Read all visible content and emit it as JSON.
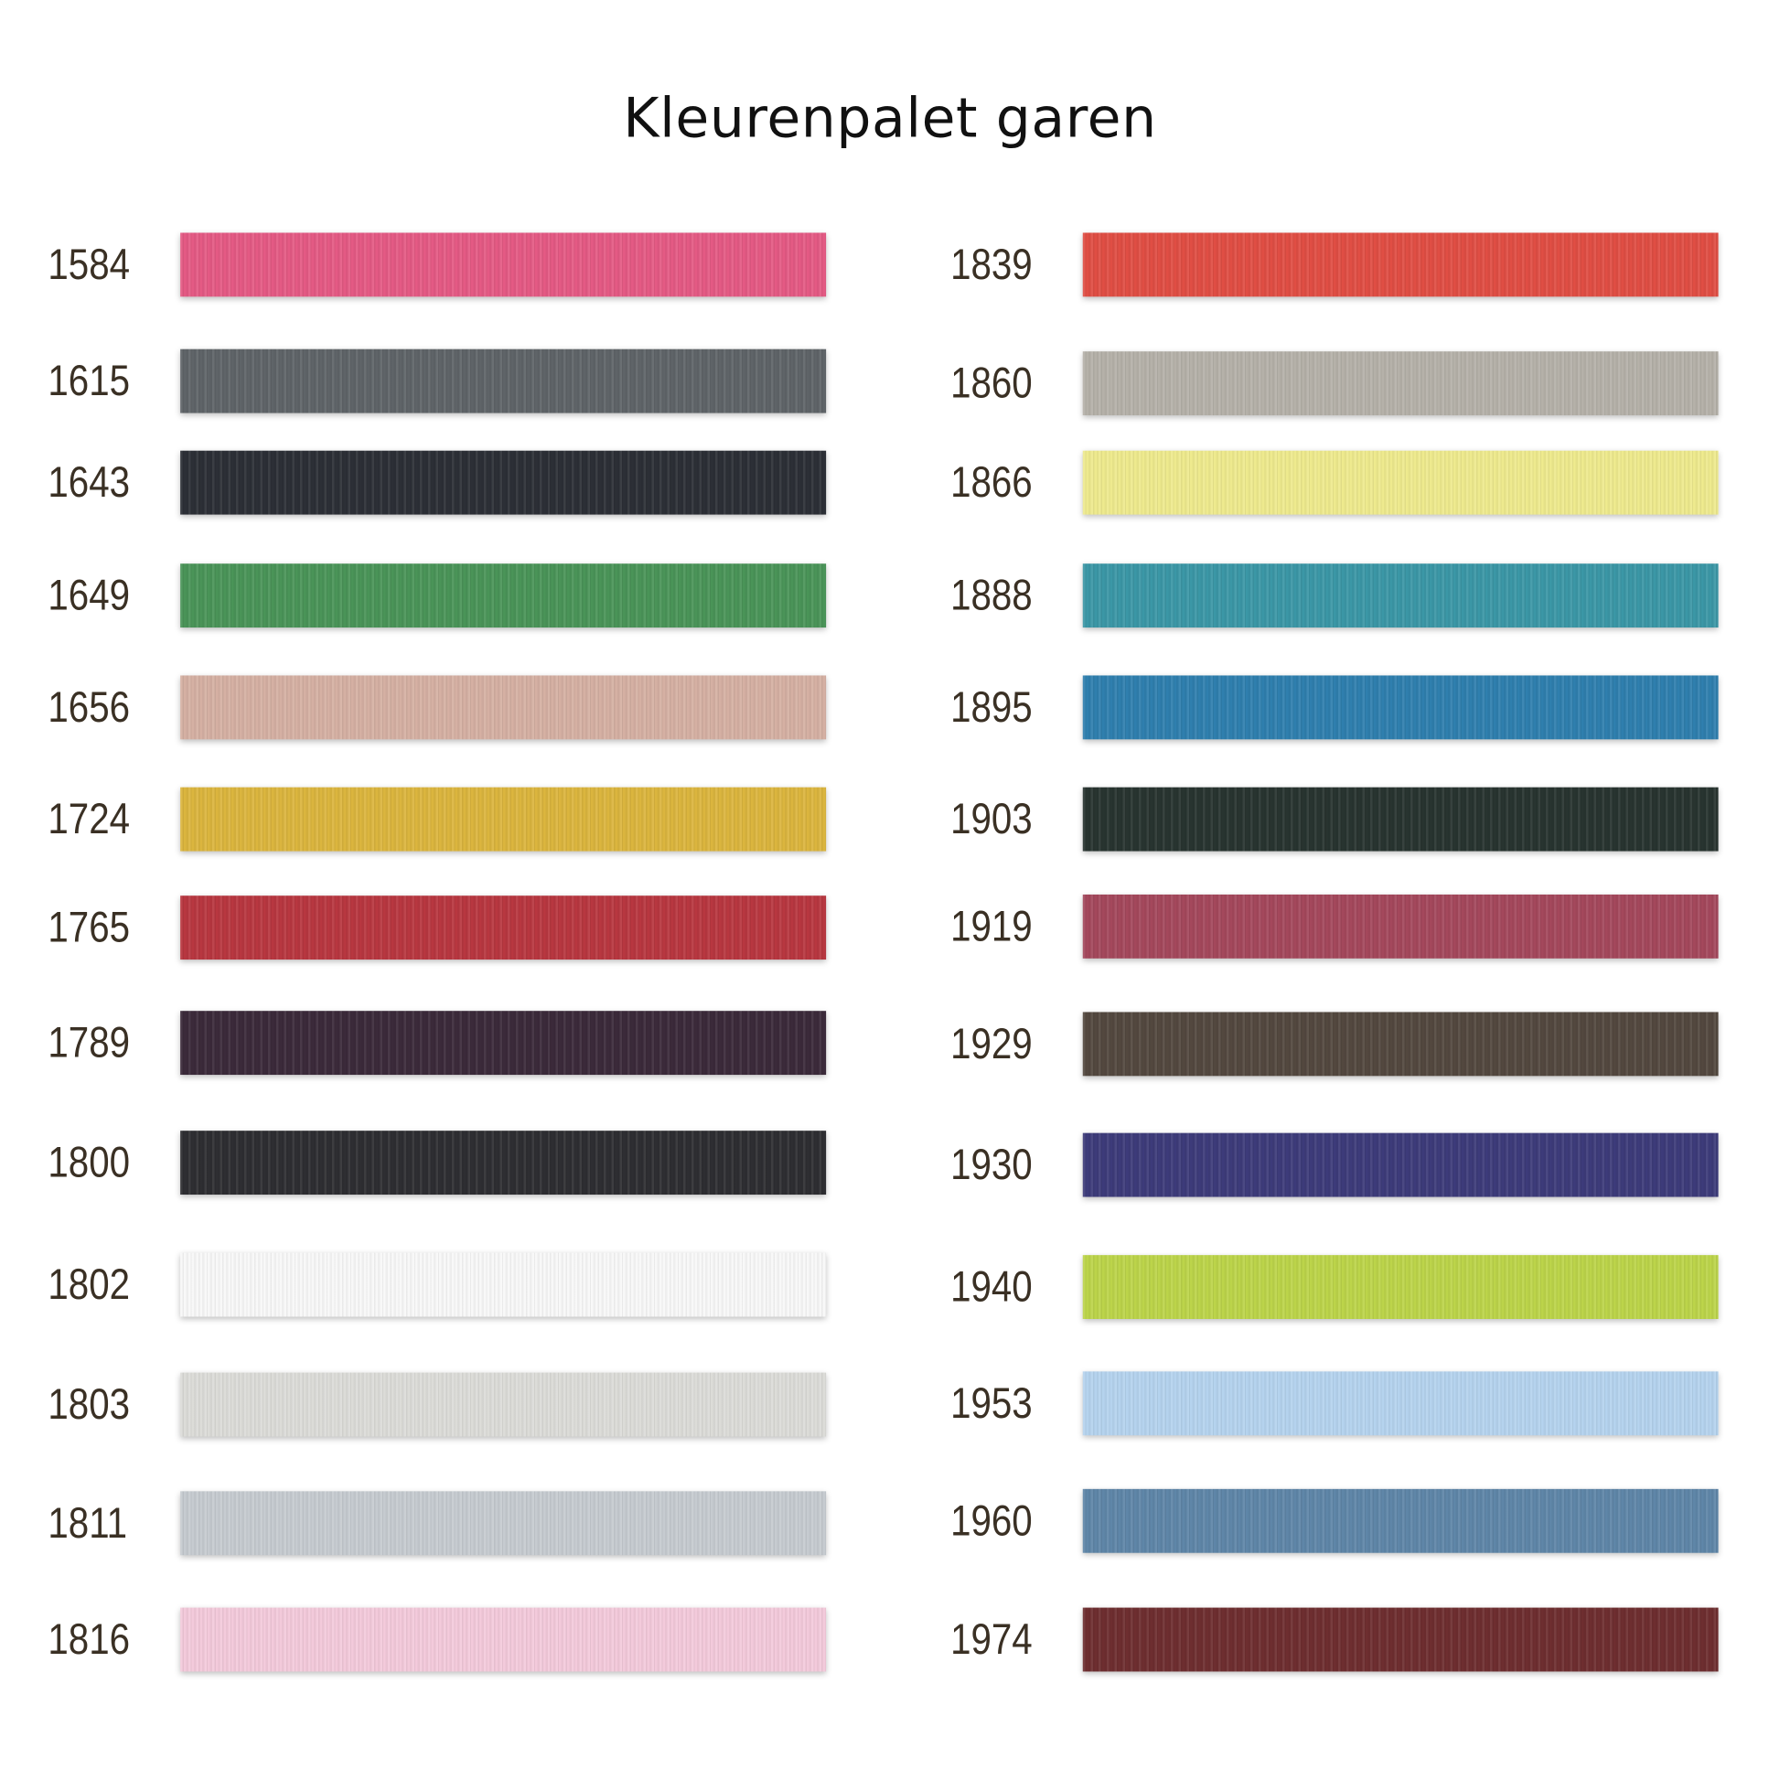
{
  "title": "Kleurenpalet garen",
  "left": [
    {
      "code": "1584",
      "color": "#e45a84"
    },
    {
      "code": "1615",
      "color": "#5f6468"
    },
    {
      "code": "1643",
      "color": "#2c2f36"
    },
    {
      "code": "1649",
      "color": "#4a9458"
    },
    {
      "code": "1656",
      "color": "#d5b0a3"
    },
    {
      "code": "1724",
      "color": "#dbb53e"
    },
    {
      "code": "1765",
      "color": "#b83740"
    },
    {
      "code": "1789",
      "color": "#3b2a3a"
    },
    {
      "code": "1800",
      "color": "#2e2e32"
    },
    {
      "code": "1802",
      "color": "#f8f8f8"
    },
    {
      "code": "1803",
      "color": "#dcdcd8"
    },
    {
      "code": "1811",
      "color": "#c6cbd0"
    },
    {
      "code": "1816",
      "color": "#f3cadb"
    }
  ],
  "right": [
    {
      "code": "1839",
      "color": "#e04e44"
    },
    {
      "code": "1860",
      "color": "#b5b1a9"
    },
    {
      "code": "1866",
      "color": "#eeea8e"
    },
    {
      "code": "1888",
      "color": "#3b97a6"
    },
    {
      "code": "1895",
      "color": "#2f7fae"
    },
    {
      "code": "1903",
      "color": "#283430"
    },
    {
      "code": "1919",
      "color": "#a4485c"
    },
    {
      "code": "1929",
      "color": "#53483f"
    },
    {
      "code": "1930",
      "color": "#3d3b7a"
    },
    {
      "code": "1940",
      "color": "#bcd44a"
    },
    {
      "code": "1953",
      "color": "#b5d3ee"
    },
    {
      "code": "1960",
      "color": "#5f86a8"
    },
    {
      "code": "1974",
      "color": "#6e2e30"
    }
  ]
}
